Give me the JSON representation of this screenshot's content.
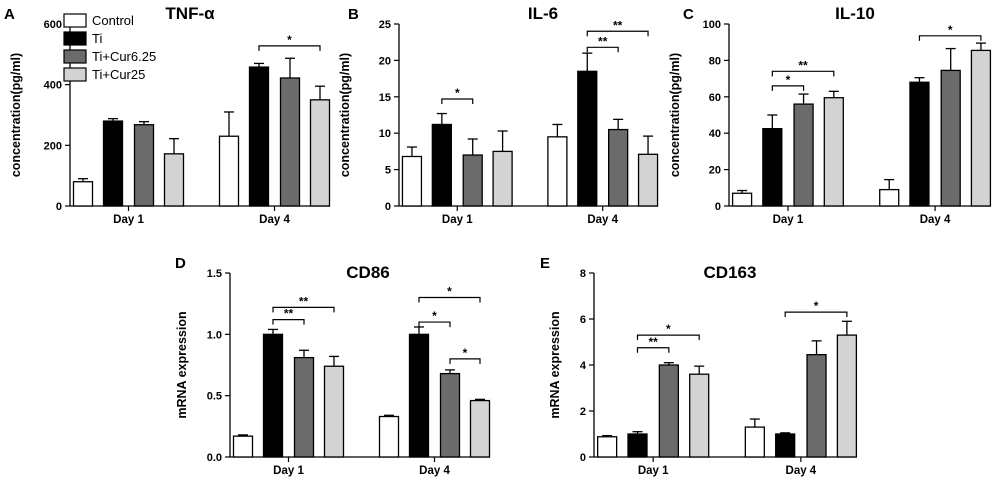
{
  "legend": [
    {
      "name": "Control",
      "color": "#ffffff"
    },
    {
      "name": "Ti",
      "color": "#000000"
    },
    {
      "name": "Ti+Cur6.25",
      "color": "#6b6b6b"
    },
    {
      "name": "Ti+Cur25",
      "color": "#d3d3d3"
    }
  ],
  "chart_data": [
    {
      "type": "bar",
      "panel": "A",
      "title": "TNF-α",
      "ylabel": "concentration(pg/ml)",
      "xlabel": "",
      "ylim": [
        0,
        600
      ],
      "yticks": [
        "0",
        "200",
        "400",
        "600"
      ],
      "categories": [
        "Day 1",
        "Day 4"
      ],
      "series": [
        {
          "name": "Control",
          "values": [
            80,
            230
          ],
          "errors": [
            10,
            80
          ]
        },
        {
          "name": "Ti",
          "values": [
            280,
            458
          ],
          "errors": [
            8,
            12
          ]
        },
        {
          "name": "Ti+Cur6.25",
          "values": [
            268,
            422
          ],
          "errors": [
            10,
            65
          ]
        },
        {
          "name": "Ti+Cur25",
          "values": [
            172,
            350
          ],
          "errors": [
            50,
            45
          ]
        }
      ],
      "significance": [
        {
          "category": 1,
          "from": 1,
          "to": 3,
          "label": "*",
          "y": 528
        }
      ]
    },
    {
      "type": "bar",
      "panel": "B",
      "title": "IL-6",
      "ylabel": "concentration(pg/ml)",
      "xlabel": "",
      "ylim": [
        0,
        25
      ],
      "yticks": [
        "0",
        "5",
        "10",
        "15",
        "20",
        "25"
      ],
      "categories": [
        "Day 1",
        "Day 4"
      ],
      "series": [
        {
          "name": "Control",
          "values": [
            6.8,
            9.5
          ],
          "errors": [
            1.3,
            1.7
          ]
        },
        {
          "name": "Ti",
          "values": [
            11.2,
            18.5
          ],
          "errors": [
            1.5,
            2.5
          ]
        },
        {
          "name": "Ti+Cur6.25",
          "values": [
            7.0,
            10.5
          ],
          "errors": [
            2.2,
            1.4
          ]
        },
        {
          "name": "Ti+Cur25",
          "values": [
            7.5,
            7.1
          ],
          "errors": [
            2.8,
            2.5
          ]
        }
      ],
      "significance": [
        {
          "category": 0,
          "from": 1,
          "to": 2,
          "label": "*",
          "y": 14.7
        },
        {
          "category": 1,
          "from": 1,
          "to": 2,
          "label": "**",
          "y": 21.8
        },
        {
          "category": 1,
          "from": 1,
          "to": 3,
          "label": "**",
          "y": 24.0
        }
      ]
    },
    {
      "type": "bar",
      "panel": "C",
      "title": "IL-10",
      "ylabel": "concentration(pg/ml)",
      "xlabel": "",
      "ylim": [
        0,
        100
      ],
      "yticks": [
        "0",
        "20",
        "40",
        "60",
        "80",
        "100"
      ],
      "categories": [
        "Day 1",
        "Day 4"
      ],
      "series": [
        {
          "name": "Control",
          "values": [
            7,
            9
          ],
          "errors": [
            1.5,
            5.5
          ]
        },
        {
          "name": "Ti",
          "values": [
            42.5,
            68
          ],
          "errors": [
            7.5,
            2.5
          ]
        },
        {
          "name": "Ti+Cur6.25",
          "values": [
            56,
            74.5
          ],
          "errors": [
            5.5,
            12
          ]
        },
        {
          "name": "Ti+Cur25",
          "values": [
            59.5,
            85.5
          ],
          "errors": [
            3.5,
            4
          ]
        }
      ],
      "significance": [
        {
          "category": 0,
          "from": 1,
          "to": 2,
          "label": "*",
          "y": 66
        },
        {
          "category": 0,
          "from": 1,
          "to": 3,
          "label": "**",
          "y": 74
        },
        {
          "category": 1,
          "from": 1,
          "to": 3,
          "label": "*",
          "y": 93.5
        }
      ]
    },
    {
      "type": "bar",
      "panel": "D",
      "title": "CD86",
      "ylabel": "mRNA expression",
      "xlabel": "",
      "ylim": [
        0,
        1.5
      ],
      "yticks": [
        "0.0",
        "0.5",
        "1.0",
        "1.5"
      ],
      "categories": [
        "Day 1",
        "Day 4"
      ],
      "series": [
        {
          "name": "Control",
          "values": [
            0.17,
            0.33
          ],
          "errors": [
            0.01,
            0.01
          ]
        },
        {
          "name": "Ti",
          "values": [
            1.0,
            1.0
          ],
          "errors": [
            0.04,
            0.06
          ]
        },
        {
          "name": "Ti+Cur6.25",
          "values": [
            0.81,
            0.68
          ],
          "errors": [
            0.06,
            0.03
          ]
        },
        {
          "name": "Ti+Cur25",
          "values": [
            0.74,
            0.46
          ],
          "errors": [
            0.08,
            0.01
          ]
        }
      ],
      "significance": [
        {
          "category": 0,
          "from": 1,
          "to": 2,
          "label": "**",
          "y": 1.12
        },
        {
          "category": 0,
          "from": 1,
          "to": 3,
          "label": "**",
          "y": 1.22
        },
        {
          "category": 1,
          "from": 1,
          "to": 2,
          "label": "*",
          "y": 1.1
        },
        {
          "category": 1,
          "from": 1,
          "to": 3,
          "label": "*",
          "y": 1.3
        },
        {
          "category": 1,
          "from": 2,
          "to": 3,
          "label": "*",
          "y": 0.8
        }
      ]
    },
    {
      "type": "bar",
      "panel": "E",
      "title": "CD163",
      "ylabel": "mRNA expression",
      "xlabel": "",
      "ylim": [
        0,
        8
      ],
      "yticks": [
        "0",
        "2",
        "4",
        "6",
        "8"
      ],
      "categories": [
        "Day 1",
        "Day 4"
      ],
      "series": [
        {
          "name": "Control",
          "values": [
            0.88,
            1.3
          ],
          "errors": [
            0.05,
            0.35
          ]
        },
        {
          "name": "Ti",
          "values": [
            1.0,
            1.0
          ],
          "errors": [
            0.1,
            0.05
          ]
        },
        {
          "name": "Ti+Cur6.25",
          "values": [
            4.0,
            4.45
          ],
          "errors": [
            0.1,
            0.6
          ]
        },
        {
          "name": "Ti+Cur25",
          "values": [
            3.6,
            5.3
          ],
          "errors": [
            0.35,
            0.6
          ]
        }
      ],
      "significance": [
        {
          "category": 0,
          "from": 1,
          "to": 2,
          "label": "**",
          "y": 4.75
        },
        {
          "category": 0,
          "from": 1,
          "to": 3,
          "label": "*",
          "y": 5.3
        },
        {
          "category": 1,
          "from": 1,
          "to": 3,
          "label": "*",
          "y": 6.3
        }
      ]
    }
  ]
}
